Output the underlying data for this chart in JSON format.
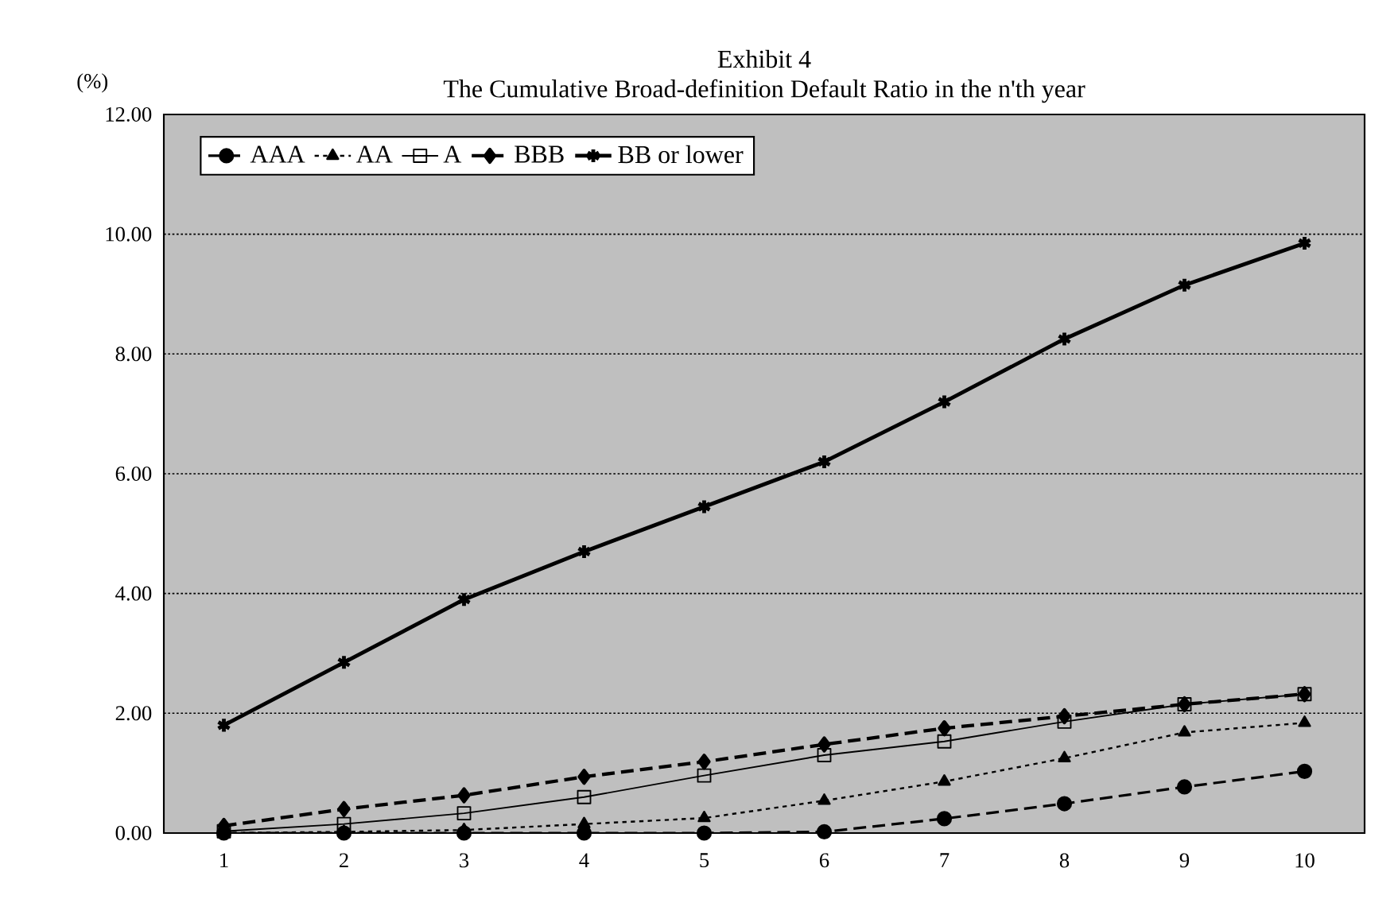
{
  "chart_data": {
    "type": "line",
    "title": "Exhibit 4",
    "subtitle": "The Cumulative Broad-definition Default Ratio in the n'th year",
    "ylabel": "(%)",
    "categories": [
      "1",
      "2",
      "3",
      "4",
      "5",
      "6",
      "7",
      "8",
      "9",
      "10"
    ],
    "series": [
      {
        "name": "AAA",
        "color": "#000000",
        "marker": "circle",
        "line_style": "dashed",
        "values": [
          0,
          0,
          0,
          0,
          0,
          0.02,
          0.24,
          0.49,
          0.77,
          1.03
        ]
      },
      {
        "name": "AA",
        "color": "#000000",
        "marker": "triangle",
        "line_style": "dotted",
        "values": [
          0,
          0.02,
          0.05,
          0.15,
          0.25,
          0.54,
          0.86,
          1.25,
          1.68,
          1.84
        ]
      },
      {
        "name": "A",
        "color": "#000000",
        "marker": "square",
        "line_style": "solid",
        "values": [
          0.03,
          0.15,
          0.33,
          0.6,
          0.96,
          1.3,
          1.53,
          1.86,
          2.15,
          2.32
        ]
      },
      {
        "name": "BBB",
        "color": "#000000",
        "marker": "diamond",
        "line_style": "dashed",
        "values": [
          0.12,
          0.4,
          0.63,
          0.94,
          1.19,
          1.48,
          1.75,
          1.95,
          2.15,
          2.32
        ]
      },
      {
        "name": "BB or lower",
        "color": "#000000",
        "marker": "cross",
        "line_style": "solid",
        "values": [
          1.8,
          2.85,
          3.9,
          4.7,
          5.45,
          6.2,
          7.2,
          8.25,
          9.15,
          9.85
        ]
      }
    ],
    "ylim": [
      0,
      12
    ],
    "yticks": [
      {
        "value": 0,
        "label": "0.00"
      },
      {
        "value": 2,
        "label": "2.00"
      },
      {
        "value": 4,
        "label": "4.00"
      },
      {
        "value": 6,
        "label": "6.00"
      },
      {
        "value": 8,
        "label": "8.00"
      },
      {
        "value": 10,
        "label": "10.00"
      },
      {
        "value": 12,
        "label": "12.00"
      }
    ],
    "grid": "y",
    "legend": "top left"
  }
}
